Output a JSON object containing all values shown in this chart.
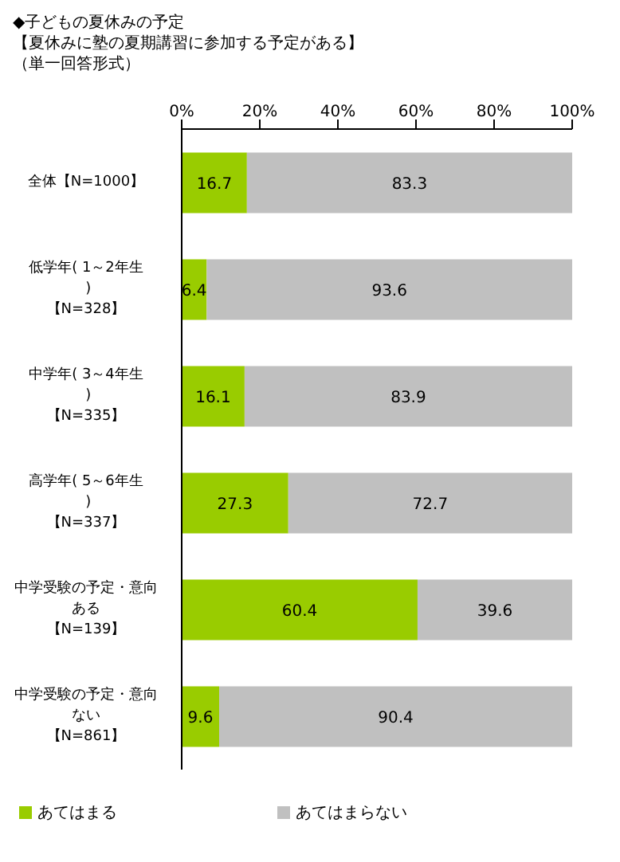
{
  "chart_data": {
    "type": "bar",
    "orientation": "horizontal",
    "stacked": true,
    "title": "◆子どもの夏休みの予定",
    "subtitle": "【夏休みに塾の夏期講習に参加する予定がある】",
    "annotations": [
      "（単一回答形式）"
    ],
    "categories": [
      "全体【N=1000】",
      "低学年( 1～2年生 )【N=328】",
      "中学年( 3～4年生 )【N=335】",
      "高学年( 5～6年生 )【N=337】",
      "中学受験の予定・意向ある【N=139】",
      "中学受験の予定・意向ない【N=861】"
    ],
    "series": [
      {
        "name": "あてはまる",
        "color": "#99cc00",
        "values": [
          16.7,
          6.4,
          16.1,
          27.3,
          60.4,
          9.6
        ]
      },
      {
        "name": "あてはまらない",
        "color": "#c0c0c0",
        "values": [
          83.3,
          93.6,
          83.9,
          72.7,
          39.6,
          90.4
        ]
      }
    ],
    "xlim": [
      0,
      100
    ],
    "xticks": [
      {
        "value": 0,
        "label": "0%"
      },
      {
        "value": 20,
        "label": "20%"
      },
      {
        "value": 40,
        "label": "40%"
      },
      {
        "value": 60,
        "label": "60%"
      },
      {
        "value": 80,
        "label": "80%"
      },
      {
        "value": 100,
        "label": "100%"
      }
    ],
    "data_labels": true,
    "legend": "bottom",
    "grid": false
  }
}
